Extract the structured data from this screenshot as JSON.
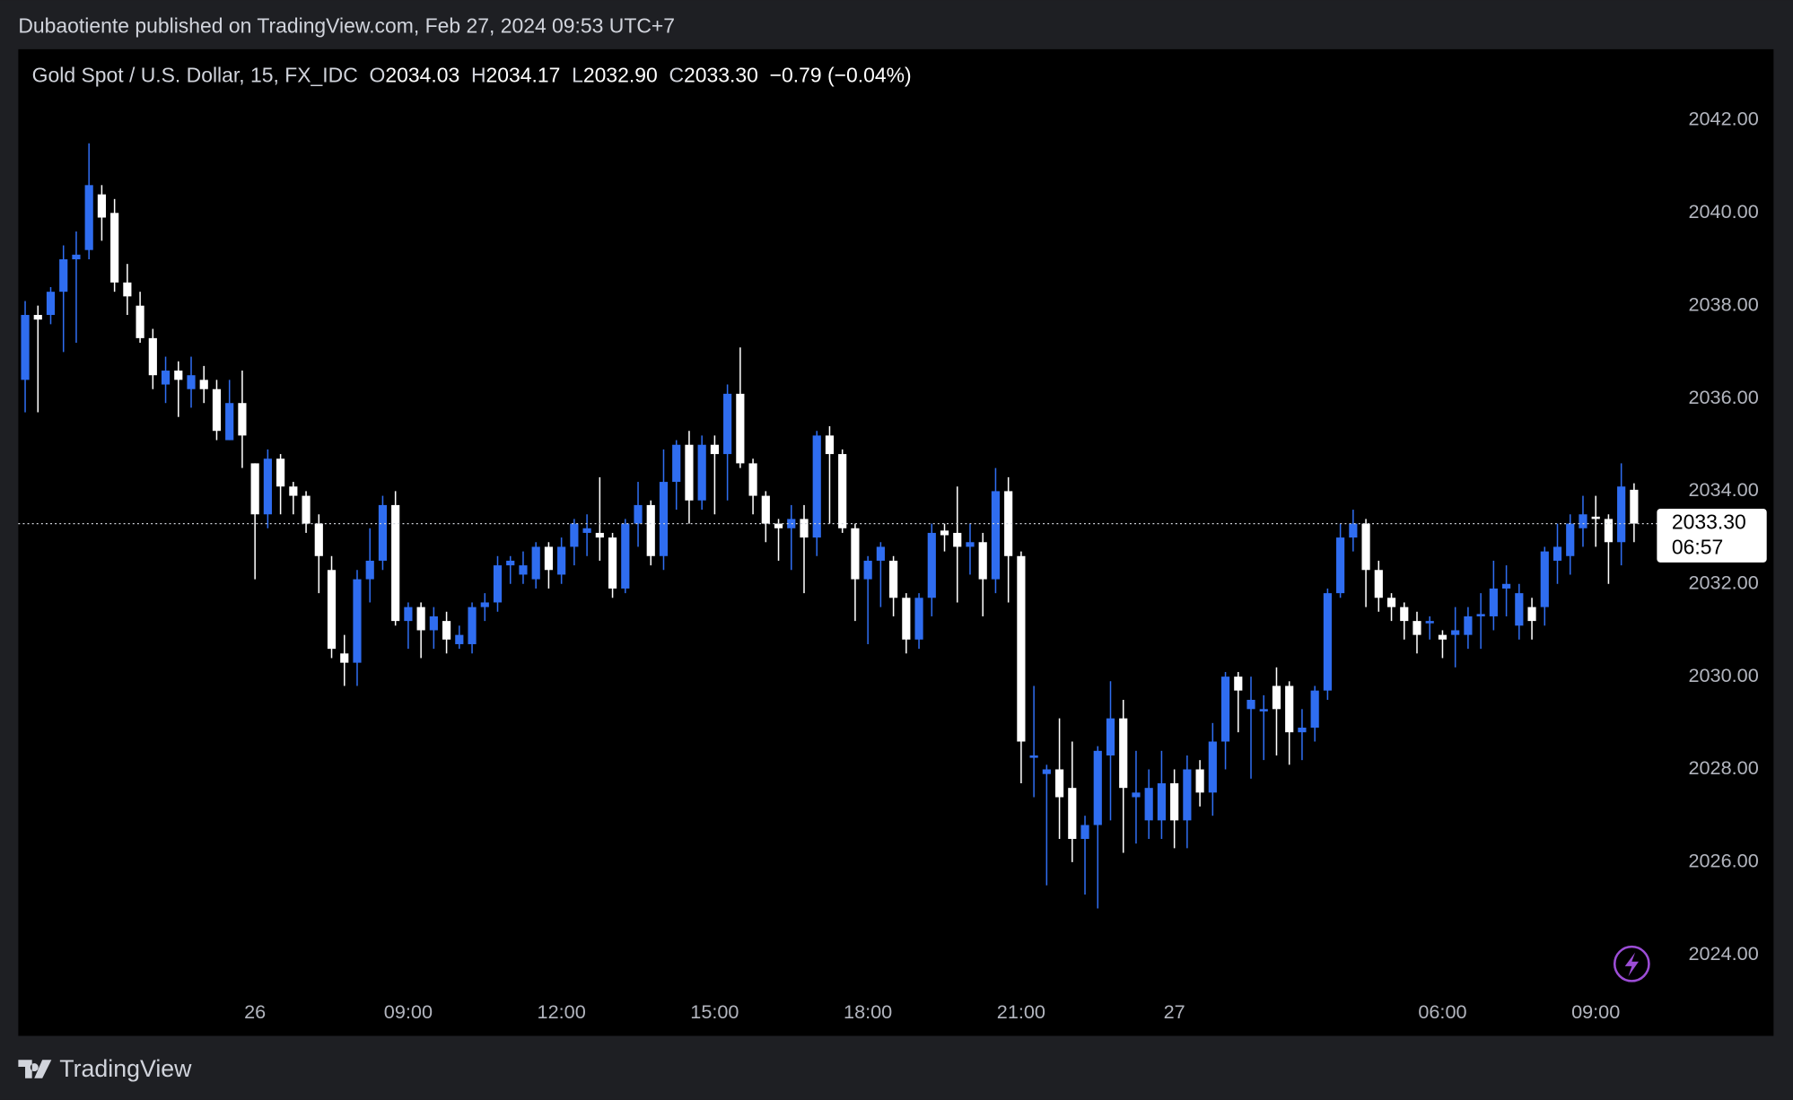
{
  "header": {
    "byline": "Dubaotiente published on TradingView.com, Feb 27, 2024 09:53 UTC+7",
    "brand": "TradingView"
  },
  "chart_data": {
    "type": "candlestick",
    "title": "Gold Spot / U.S. Dollar, 15, FX_IDC",
    "ohlc": [
      {
        "label": "O",
        "value": "2034.03"
      },
      {
        "label": "H",
        "value": "2034.17"
      },
      {
        "label": "L",
        "value": "2032.90"
      },
      {
        "label": "C",
        "value": "2033.30"
      }
    ],
    "change": "−0.79 (−0.04%)",
    "countdown": "06:57",
    "categories": [
      null,
      null,
      null,
      null,
      null,
      null,
      null,
      null,
      null,
      null,
      null,
      null,
      null,
      null,
      null,
      null,
      null,
      null,
      "26",
      null,
      null,
      null,
      null,
      null,
      null,
      null,
      null,
      null,
      null,
      null,
      "09:00",
      null,
      null,
      null,
      null,
      null,
      null,
      null,
      null,
      null,
      null,
      null,
      "12:00",
      null,
      null,
      null,
      null,
      null,
      null,
      null,
      null,
      null,
      null,
      null,
      "15:00",
      null,
      null,
      null,
      null,
      null,
      null,
      null,
      null,
      null,
      null,
      null,
      "18:00",
      null,
      null,
      null,
      null,
      null,
      null,
      null,
      null,
      null,
      null,
      null,
      "21:00",
      null,
      null,
      null,
      null,
      null,
      null,
      null,
      null,
      null,
      null,
      null,
      "27",
      null,
      null,
      null,
      null,
      null,
      null,
      null,
      null,
      null,
      null,
      null,
      null,
      null,
      null,
      null,
      null,
      null,
      null,
      null,
      null,
      "06:00",
      null,
      null,
      null,
      null,
      null,
      null,
      null,
      null,
      null,
      null,
      null,
      "09:00",
      null,
      null,
      null
    ],
    "open": [
      2036.4,
      2037.8,
      2037.8,
      2038.3,
      2039.0,
      2039.2,
      2040.4,
      2040.0,
      2038.5,
      2038.0,
      2037.3,
      2036.3,
      2036.6,
      2036.2,
      2036.4,
      2036.2,
      2035.1,
      2035.9,
      2034.6,
      2033.5,
      2034.7,
      2034.1,
      2033.9,
      2033.3,
      2032.3,
      2030.5,
      2030.3,
      2032.1,
      2032.5,
      2033.7,
      2031.2,
      2031.5,
      2031.0,
      2031.2,
      2030.7,
      2030.7,
      2031.5,
      2031.6,
      2032.4,
      2032.2,
      2032.1,
      2032.8,
      2032.2,
      2032.8,
      2033.1,
      2033.1,
      2033.0,
      2031.9,
      2033.3,
      2033.7,
      2032.6,
      2034.2,
      2035.0,
      2033.8,
      2035.0,
      2034.8,
      2036.1,
      2034.6,
      2033.9,
      2033.3,
      2033.2,
      2033.4,
      2033.0,
      2035.2,
      2034.8,
      2033.2,
      2032.1,
      2032.5,
      2032.5,
      2031.7,
      2030.8,
      2031.7,
      2033.15,
      2033.1,
      2032.8,
      2032.9,
      2032.1,
      2034.0,
      2032.6,
      2028.25,
      2027.9,
      2028.0,
      2027.6,
      2026.5,
      2026.8,
      2028.3,
      2029.1,
      2027.4,
      2026.9,
      2026.9,
      2027.7,
      2026.9,
      2028.0,
      2027.5,
      2028.6,
      2030.0,
      2029.3,
      2029.25,
      2029.8,
      2029.8,
      2028.8,
      2028.9,
      2029.7,
      2031.8,
      2033.0,
      2033.3,
      2032.3,
      2031.7,
      2031.5,
      2031.2,
      2031.15,
      2030.9,
      2030.9,
      2030.9,
      2031.3,
      2031.3,
      2031.9,
      2031.1,
      2031.5,
      2031.5,
      2032.5,
      2032.6,
      2033.2,
      2033.45,
      2033.4,
      2032.9,
      2034.03
    ],
    "high": [
      2038.1,
      2038.0,
      2038.4,
      2039.3,
      2039.6,
      2041.5,
      2040.6,
      2040.3,
      2038.9,
      2038.3,
      2037.5,
      2036.9,
      2036.8,
      2036.9,
      2036.7,
      2036.4,
      2036.4,
      2036.6,
      2034.6,
      2034.9,
      2034.8,
      2034.2,
      2034.0,
      2033.5,
      2032.6,
      2030.9,
      2032.3,
      2033.2,
      2033.9,
      2034.0,
      2031.6,
      2031.6,
      2031.5,
      2031.4,
      2031.1,
      2031.6,
      2031.8,
      2032.6,
      2032.6,
      2032.7,
      2032.9,
      2032.9,
      2033.0,
      2033.4,
      2033.5,
      2034.3,
      2033.1,
      2033.4,
      2034.2,
      2033.8,
      2034.9,
      2035.1,
      2035.3,
      2035.2,
      2035.2,
      2036.3,
      2037.1,
      2034.7,
      2034.0,
      2033.4,
      2033.7,
      2033.7,
      2035.3,
      2035.4,
      2034.9,
      2033.3,
      2032.6,
      2032.9,
      2032.6,
      2031.8,
      2031.8,
      2033.3,
      2033.3,
      2034.1,
      2033.3,
      2033.1,
      2034.5,
      2034.3,
      2032.7,
      2029.8,
      2028.1,
      2029.1,
      2028.6,
      2027.0,
      2028.5,
      2029.9,
      2029.5,
      2028.4,
      2028.0,
      2028.4,
      2028.0,
      2028.3,
      2028.2,
      2029.0,
      2030.1,
      2030.1,
      2030.0,
      2029.6,
      2030.2,
      2029.9,
      2029.3,
      2029.8,
      2031.9,
      2033.3,
      2033.6,
      2033.4,
      2032.5,
      2031.8,
      2031.6,
      2031.4,
      2031.3,
      2031.0,
      2031.5,
      2031.5,
      2031.8,
      2032.5,
      2032.4,
      2032.0,
      2031.7,
      2032.8,
      2033.3,
      2033.5,
      2033.9,
      2033.9,
      2033.5,
      2034.6,
      2034.17
    ],
    "low": [
      2035.7,
      2035.7,
      2037.6,
      2037.0,
      2037.2,
      2039.0,
      2039.4,
      2038.3,
      2037.8,
      2037.2,
      2036.2,
      2035.9,
      2035.6,
      2035.8,
      2035.9,
      2035.1,
      2035.1,
      2034.5,
      2032.1,
      2033.2,
      2033.5,
      2033.5,
      2033.1,
      2031.8,
      2030.4,
      2029.8,
      2029.8,
      2031.6,
      2032.3,
      2031.1,
      2030.6,
      2030.4,
      2030.6,
      2030.5,
      2030.6,
      2030.5,
      2031.2,
      2031.4,
      2032.0,
      2032.0,
      2031.9,
      2031.9,
      2032.0,
      2032.4,
      2032.6,
      2032.5,
      2031.7,
      2031.8,
      2032.8,
      2032.4,
      2032.3,
      2033.6,
      2033.3,
      2033.6,
      2033.5,
      2033.8,
      2034.5,
      2033.5,
      2032.9,
      2032.5,
      2032.3,
      2031.8,
      2032.6,
      2033.3,
      2033.1,
      2031.2,
      2030.7,
      2031.5,
      2031.3,
      2030.5,
      2030.6,
      2031.3,
      2032.7,
      2031.6,
      2032.2,
      2031.3,
      2031.8,
      2031.6,
      2027.7,
      2027.4,
      2025.5,
      2026.5,
      2026.0,
      2025.3,
      2025.0,
      2026.9,
      2026.2,
      2026.4,
      2026.5,
      2026.5,
      2026.3,
      2026.3,
      2027.2,
      2027.0,
      2028.0,
      2028.8,
      2027.8,
      2028.2,
      2028.3,
      2028.1,
      2028.2,
      2028.6,
      2029.5,
      2031.7,
      2032.7,
      2031.5,
      2031.4,
      2031.2,
      2030.8,
      2030.5,
      2030.8,
      2030.4,
      2030.2,
      2030.6,
      2030.6,
      2031.0,
      2031.3,
      2030.8,
      2030.8,
      2031.1,
      2032.0,
      2032.2,
      2032.8,
      2032.8,
      2032.0,
      2032.4,
      2032.9
    ],
    "close": [
      2037.8,
      2037.7,
      2038.3,
      2039.0,
      2039.1,
      2040.6,
      2039.9,
      2038.5,
      2038.2,
      2037.3,
      2036.5,
      2036.6,
      2036.4,
      2036.5,
      2036.2,
      2035.3,
      2035.9,
      2035.2,
      2033.5,
      2034.7,
      2034.1,
      2033.9,
      2033.3,
      2032.6,
      2030.6,
      2030.3,
      2032.1,
      2032.5,
      2033.7,
      2031.2,
      2031.5,
      2031.0,
      2031.3,
      2030.8,
      2030.9,
      2031.5,
      2031.6,
      2032.4,
      2032.5,
      2032.4,
      2032.8,
      2032.3,
      2032.8,
      2033.3,
      2033.2,
      2033.0,
      2031.9,
      2033.3,
      2033.7,
      2032.6,
      2034.2,
      2035.0,
      2033.8,
      2035.0,
      2034.8,
      2036.1,
      2034.6,
      2033.9,
      2033.3,
      2033.2,
      2033.4,
      2033.0,
      2035.2,
      2034.8,
      2033.2,
      2032.1,
      2032.5,
      2032.8,
      2031.7,
      2030.8,
      2031.7,
      2033.1,
      2033.05,
      2032.8,
      2032.9,
      2032.1,
      2034.0,
      2032.6,
      2028.6,
      2028.3,
      2028.0,
      2027.4,
      2026.5,
      2026.8,
      2028.4,
      2029.1,
      2027.6,
      2027.5,
      2027.6,
      2027.7,
      2026.9,
      2028.0,
      2027.5,
      2028.6,
      2030.0,
      2029.7,
      2029.5,
      2029.3,
      2029.3,
      2028.8,
      2028.9,
      2029.7,
      2031.8,
      2033.0,
      2033.3,
      2032.3,
      2031.7,
      2031.5,
      2031.2,
      2030.9,
      2031.2,
      2030.8,
      2031.0,
      2031.3,
      2031.35,
      2031.9,
      2032.0,
      2031.8,
      2031.2,
      2032.7,
      2032.8,
      2033.3,
      2033.5,
      2033.4,
      2032.9,
      2034.1,
      2033.3
    ],
    "up_color": "#2f6df0",
    "down_color": "#ffffff",
    "ylim": [
      2023.14,
      2043.53
    ],
    "yticks": [
      {
        "value": 2024,
        "label": "2024.00"
      },
      {
        "value": 2026,
        "label": "2026.00"
      },
      {
        "value": 2028,
        "label": "2028.00"
      },
      {
        "value": 2030,
        "label": "2030.00"
      },
      {
        "value": 2032,
        "label": "2032.00"
      },
      {
        "value": 2034,
        "label": "2034.00"
      },
      {
        "value": 2036,
        "label": "2036.00"
      },
      {
        "value": 2038,
        "label": "2038.00"
      },
      {
        "value": 2040,
        "label": "2040.00"
      },
      {
        "value": 2042,
        "label": "2042.00"
      }
    ],
    "grid": false
  }
}
